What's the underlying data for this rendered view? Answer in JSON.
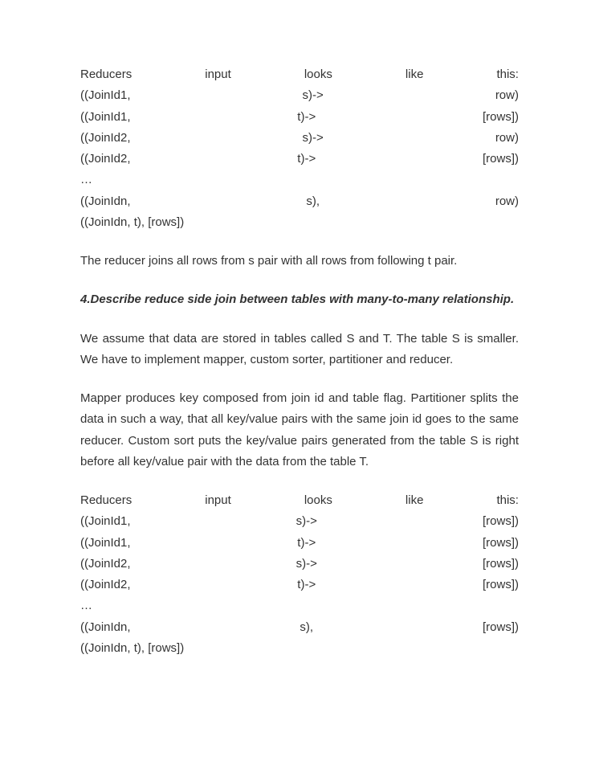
{
  "block1": {
    "header": {
      "c1": "Reducers",
      "c2": "input",
      "c3": "looks",
      "c4": "like",
      "c5": "this:"
    },
    "rows": [
      {
        "left": "((JoinId1,",
        "mid": "s)->",
        "right": "row)"
      },
      {
        "left": "((JoinId1,",
        "mid": "t)->",
        "right": "[rows])"
      },
      {
        "left": "((JoinId2,",
        "mid": "s)->",
        "right": "row)"
      },
      {
        "left": "((JoinId2,",
        "mid": "t)->",
        "right": "[rows])"
      }
    ],
    "ellipsis": "…",
    "rown": {
      "left": "((JoinIdn,",
      "mid": "s),",
      "right": "row)"
    },
    "last": "((JoinIdn, t), [rows])"
  },
  "para1": "The reducer joins all rows from s pair with all rows from following t pair.",
  "heading": "4.Describe reduce side join between tables with many-to-many relationship.",
  "para2": "We assume that data are stored in tables called S and T. The table S is smaller. We have to implement mapper, custom sorter, partitioner and reducer.",
  "para3": "Mapper produces key composed from join id and table flag. Partitioner splits the data in such a way, that all key/value pairs with the same join id goes to the same reducer. Custom sort puts the key/value pairs generated from the table S is right before all key/value pair with the data from the table T.",
  "block2": {
    "header": {
      "c1": "Reducers",
      "c2": "input",
      "c3": "looks",
      "c4": "like",
      "c5": "this:"
    },
    "rows": [
      {
        "left": "((JoinId1,",
        "mid": "s)->",
        "right": "[rows])"
      },
      {
        "left": "((JoinId1,",
        "mid": "t)->",
        "right": "[rows])"
      },
      {
        "left": "((JoinId2,",
        "mid": "s)->",
        "right": "[rows])"
      },
      {
        "left": "((JoinId2,",
        "mid": "t)->",
        "right": "[rows])"
      }
    ],
    "ellipsis": "…",
    "rown": {
      "left": "((JoinIdn,",
      "mid": "s),",
      "right": "[rows])"
    },
    "last": "((JoinIdn, t), [rows])"
  }
}
